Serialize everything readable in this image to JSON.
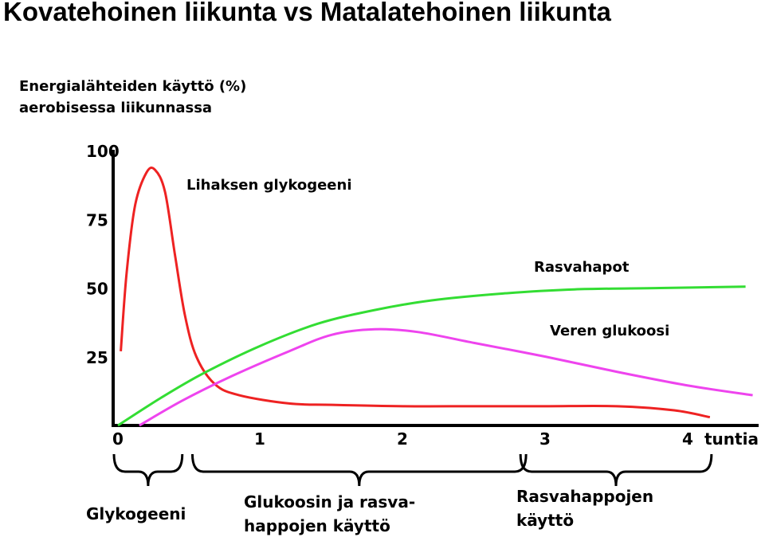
{
  "slide_title": "Kovatehoinen liikunta vs Matalatehoinen liikunta",
  "chart_data": {
    "type": "line",
    "title": [
      "Energialähteiden käyttö (%)",
      "aerobisessa liikunnassa"
    ],
    "xlabel": "tuntia",
    "ylabel": "",
    "xlim": [
      0,
      4.4
    ],
    "ylim": [
      0,
      100
    ],
    "x_ticks": [
      "0",
      "1",
      "2",
      "3",
      "4"
    ],
    "y_ticks": [
      "25",
      "50",
      "75",
      "100"
    ],
    "grid": false,
    "series": [
      {
        "name": "Lihaksen glykogeeni",
        "color": "#ee2222",
        "points": [
          [
            0.02,
            27
          ],
          [
            0.06,
            55
          ],
          [
            0.12,
            80
          ],
          [
            0.2,
            92
          ],
          [
            0.26,
            93
          ],
          [
            0.33,
            85
          ],
          [
            0.4,
            62
          ],
          [
            0.47,
            40
          ],
          [
            0.55,
            25
          ],
          [
            0.68,
            15
          ],
          [
            0.85,
            11
          ],
          [
            1.2,
            8
          ],
          [
            1.5,
            7.5
          ],
          [
            2.0,
            7
          ],
          [
            2.5,
            7
          ],
          [
            3.0,
            7
          ],
          [
            3.5,
            7
          ],
          [
            3.9,
            5.5
          ],
          [
            4.15,
            3
          ]
        ]
      },
      {
        "name": "Rasvahapot",
        "color": "#33dd33",
        "points": [
          [
            0,
            0
          ],
          [
            0.3,
            10
          ],
          [
            0.6,
            19
          ],
          [
            1.0,
            29
          ],
          [
            1.4,
            37
          ],
          [
            1.8,
            42
          ],
          [
            2.2,
            45.5
          ],
          [
            2.7,
            48
          ],
          [
            3.2,
            49.5
          ],
          [
            3.8,
            50
          ],
          [
            4.4,
            50.5
          ]
        ]
      },
      {
        "name": "Veren glukoosi",
        "color": "#ee44ee",
        "points": [
          [
            0.15,
            0
          ],
          [
            0.45,
            9
          ],
          [
            0.8,
            18
          ],
          [
            1.2,
            27
          ],
          [
            1.5,
            33
          ],
          [
            1.8,
            35
          ],
          [
            2.1,
            34
          ],
          [
            2.5,
            30
          ],
          [
            3.0,
            25
          ],
          [
            3.5,
            19.5
          ],
          [
            4.0,
            14.5
          ],
          [
            4.45,
            11
          ]
        ]
      }
    ],
    "phases": [
      {
        "label": [
          "Glykogeeni"
        ],
        "from": 0,
        "to": 0.44
      },
      {
        "label": [
          "Glukoosin ja rasva-",
          "happojen käyttö"
        ],
        "from": 0.55,
        "to": 2.85
      },
      {
        "label": [
          "Rasvahappojen",
          "käyttö"
        ],
        "from": 2.85,
        "to": 4.15
      }
    ]
  }
}
